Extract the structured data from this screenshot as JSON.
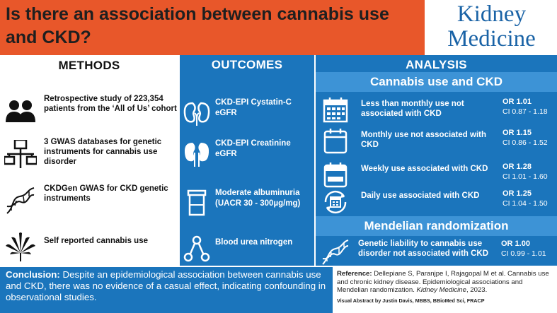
{
  "header": {
    "title": "Is there an association between cannabis use and CKD?",
    "logo_line1": "Kidney",
    "logo_line2": "Medicine"
  },
  "methods": {
    "title": "METHODS",
    "items": [
      {
        "icon": "people-icon",
        "text": "Retrospective study of 223,354 patients from the ‘All of Us’ cohort"
      },
      {
        "icon": "network-icon",
        "text": "3 GWAS databases for genetic instruments for cannabis use disorder"
      },
      {
        "icon": "dna-icon",
        "text": "CKDGen GWAS for CKD genetic instruments"
      },
      {
        "icon": "cannabis-leaf-icon",
        "text": "Self reported cannabis use"
      }
    ]
  },
  "outcomes": {
    "title": "OUTCOMES",
    "items": [
      {
        "icon": "kidneys-icon",
        "text": "CKD-EPI Cystatin-C eGFR"
      },
      {
        "icon": "kidneys-icon",
        "text": "CKD-EPI Creatinine eGFR"
      },
      {
        "icon": "urine-cup-icon",
        "text": "Moderate albuminuria (UACR 30 - 300µg/mg)"
      },
      {
        "icon": "molecule-icon",
        "text": "Blood urea nitrogen"
      }
    ]
  },
  "analysis": {
    "title": "ANALYSIS",
    "cannabis_heading": "Cannabis use and CKD",
    "rows": [
      {
        "icon": "calendar-grid-icon",
        "text": "Less than monthly use not associated with CKD",
        "or": "OR 1.01",
        "ci": "CI 0.87 - 1.18"
      },
      {
        "icon": "calendar-icon",
        "text": "Monthly use not associated with CKD",
        "or": "OR 1.15",
        "ci": "CI 0.86 - 1.52"
      },
      {
        "icon": "calendar-week-icon",
        "text": "Weekly use associated with CKD",
        "or": "OR 1.28",
        "ci": "CI 1.01 - 1.60"
      },
      {
        "icon": "daily-cycle-icon",
        "text": "Daily use associated with CKD",
        "or": "OR 1.25",
        "ci": "CI 1.04 - 1.50"
      }
    ],
    "mr_heading": "Mendelian randomization",
    "mr_row": {
      "icon": "dna-icon",
      "text": "Genetic liability to cannabis use disorder not associated with CKD",
      "or": "OR 1.00",
      "ci": "CI 0.99 - 1.01"
    }
  },
  "conclusion": {
    "label": "Conclusion:",
    "text": " Despite an epidemiological association between cannabis use and CKD, there was no evidence of a casual effect, indicating confounding in observational studies."
  },
  "reference": {
    "label": "Reference:",
    "text": " Dellepiane S, Paranjpe I, Rajagopal M et al. Cannabis use and chronic kidney disease. Epidemiological associations and Mendelian randomization. ",
    "journal": "Kidney Medicine",
    "year": ", 2023.",
    "credit": "Visual Abstract by Justin Davis, MBBS, BBioMed Sci, FRACP"
  },
  "colors": {
    "header_orange": "#e8572a",
    "panel_blue": "#1b75bc",
    "subheading_blue": "#3d93d6",
    "logo_blue": "#1a63a6"
  }
}
